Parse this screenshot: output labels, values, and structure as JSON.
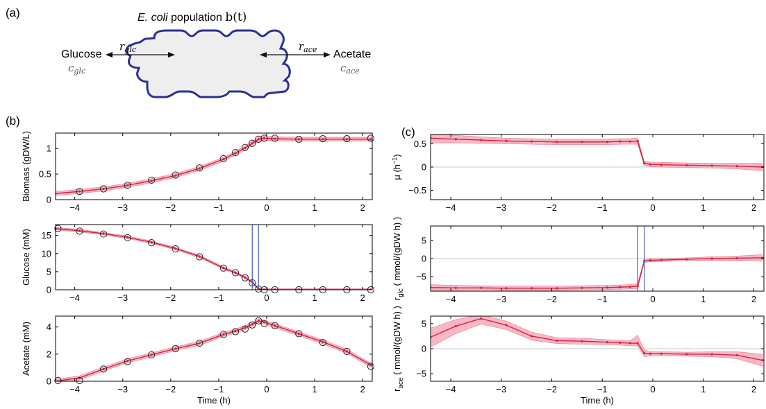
{
  "panel_labels": {
    "a": "(a)",
    "b": "(b)",
    "c": "(c)"
  },
  "diagram": {
    "title_italic": "E. coli",
    "title_rest": " population ",
    "title_math": "b(t)",
    "left_label": "Glucose",
    "left_sub": "c",
    "left_sub_idx": "glc",
    "right_label": "Acetate",
    "right_sub": "c",
    "right_sub_idx": "ace",
    "r_left": "r",
    "r_left_idx": "glc",
    "r_right": "r",
    "r_right_idx": "ace",
    "colors": {
      "outline": "#2b2f96",
      "fill": "#eeeeee"
    }
  },
  "colors": {
    "line": "#d4213d",
    "band": "#f7b7c4",
    "marker": "#222222",
    "vline": "#4a5ab8",
    "zero": "#c8c8c8"
  },
  "chart_data": [
    {
      "id": "biomass",
      "type": "line",
      "ylabel": "Biomass (gDW/L)",
      "xlabel": "",
      "xlim": [
        -4.4,
        2.2
      ],
      "ylim": [
        0,
        1.3
      ],
      "xticks": [
        -4,
        -3,
        -2,
        -1,
        0,
        1,
        2
      ],
      "yticks": [
        0,
        0.5,
        1
      ],
      "yticklabels": [
        "0",
        "0.5",
        "1"
      ],
      "x": [
        -4.4,
        -3.9,
        -3.4,
        -2.9,
        -2.4,
        -1.9,
        -1.4,
        -0.9,
        -0.65,
        -0.45,
        -0.3,
        -0.17,
        -0.05,
        0.17,
        0.67,
        1.17,
        1.67,
        2.17
      ],
      "y": [
        0.12,
        0.16,
        0.21,
        0.28,
        0.37,
        0.47,
        0.61,
        0.79,
        0.91,
        1.01,
        1.1,
        1.18,
        1.2,
        1.19,
        1.18,
        1.18,
        1.18,
        1.18
      ],
      "band": 0.04,
      "markers_x": [
        -3.9,
        -3.4,
        -2.9,
        -2.4,
        -1.9,
        -1.4,
        -0.9,
        -0.65,
        -0.45,
        -0.3,
        -0.17,
        -0.05,
        0.17,
        0.67,
        1.17,
        1.67,
        2.17
      ],
      "markers_y": [
        0.16,
        0.21,
        0.28,
        0.38,
        0.48,
        0.62,
        0.8,
        0.92,
        1.02,
        1.1,
        1.18,
        1.2,
        1.2,
        1.18,
        1.19,
        1.19,
        1.2
      ]
    },
    {
      "id": "glucose",
      "type": "line",
      "ylabel": "Glucose (mM)",
      "xlabel": "",
      "xlim": [
        -4.4,
        2.2
      ],
      "ylim": [
        0,
        18
      ],
      "xticks": [
        -4,
        -3,
        -2,
        -1,
        0,
        1,
        2
      ],
      "yticks": [
        0,
        5,
        10,
        15
      ],
      "yticklabels": [
        "0",
        "5",
        "10",
        "15"
      ],
      "x": [
        -4.4,
        -3.9,
        -3.4,
        -2.9,
        -2.4,
        -1.9,
        -1.4,
        -0.9,
        -0.65,
        -0.45,
        -0.3,
        -0.17,
        -0.05,
        0.17,
        0.67,
        1.17,
        1.67,
        2.17
      ],
      "y": [
        16.9,
        16.3,
        15.5,
        14.5,
        13.1,
        11.4,
        9.2,
        6.0,
        4.7,
        3.4,
        2.1,
        0.2,
        0.0,
        0.0,
        0.0,
        0.0,
        0.0,
        0.0
      ],
      "band": 0.35,
      "markers_x": [
        -4.35,
        -3.9,
        -3.4,
        -2.9,
        -2.4,
        -1.9,
        -1.4,
        -0.9,
        -0.65,
        -0.45,
        -0.3,
        -0.17,
        -0.05,
        0.17,
        0.67,
        1.17,
        1.67,
        2.17
      ],
      "markers_y": [
        16.9,
        16.2,
        15.4,
        14.4,
        13.0,
        11.3,
        9.1,
        6.0,
        4.7,
        3.3,
        1.9,
        0.2,
        0.0,
        0.0,
        0.0,
        0.0,
        0.0,
        0.0
      ],
      "vlines": [
        -0.3,
        -0.17
      ]
    },
    {
      "id": "acetate",
      "type": "line",
      "ylabel": "Acetate (mM)",
      "xlabel": "Time (h)",
      "xlim": [
        -4.4,
        2.2
      ],
      "ylim": [
        0,
        4.8
      ],
      "xticks": [
        -4,
        -3,
        -2,
        -1,
        0,
        1,
        2
      ],
      "yticks": [
        0,
        2,
        4
      ],
      "yticklabels": [
        "0",
        "2",
        "4"
      ],
      "x": [
        -4.4,
        -3.9,
        -3.4,
        -2.9,
        -2.4,
        -1.9,
        -1.4,
        -0.9,
        -0.65,
        -0.45,
        -0.3,
        -0.17,
        -0.05,
        0.17,
        0.67,
        1.17,
        1.67,
        2.17
      ],
      "y": [
        0.0,
        0.25,
        0.9,
        1.5,
        1.95,
        2.4,
        2.8,
        3.45,
        3.7,
        3.95,
        4.2,
        4.45,
        4.35,
        4.1,
        3.5,
        2.9,
        2.2,
        1.2
      ],
      "band": 0.15,
      "markers_x": [
        -4.35,
        -3.9,
        -3.4,
        -2.9,
        -2.4,
        -1.9,
        -1.4,
        -0.9,
        -0.65,
        -0.45,
        -0.3,
        -0.17,
        -0.05,
        0.17,
        0.67,
        1.17,
        1.67,
        2.17
      ],
      "markers_y": [
        0.05,
        0.05,
        0.9,
        1.45,
        1.95,
        2.4,
        2.8,
        3.45,
        3.65,
        3.85,
        4.15,
        4.45,
        4.25,
        4.1,
        3.5,
        2.85,
        2.2,
        1.1
      ]
    },
    {
      "id": "mu",
      "type": "line",
      "ylabel": "μ (h",
      "ylabel_sup": "−1",
      "ylabel_end": ")",
      "xlabel": "",
      "xlim": [
        -4.4,
        2.2
      ],
      "ylim": [
        -0.7,
        0.7
      ],
      "xticks": [
        -4,
        -3,
        -2,
        -1,
        0,
        1,
        2
      ],
      "yticks": [
        -0.5,
        0,
        0.5
      ],
      "yticklabels": [
        "−0.5",
        "0",
        "0.5"
      ],
      "zero_line": true,
      "x": [
        -4.4,
        -3.9,
        -3.4,
        -2.9,
        -2.4,
        -1.9,
        -1.4,
        -0.9,
        -0.65,
        -0.45,
        -0.3,
        -0.17,
        -0.05,
        0.17,
        0.67,
        1.17,
        1.67,
        2.17
      ],
      "y": [
        0.62,
        0.6,
        0.58,
        0.56,
        0.55,
        0.54,
        0.54,
        0.54,
        0.55,
        0.55,
        0.56,
        0.08,
        0.06,
        0.05,
        0.04,
        0.03,
        0.02,
        0.0
      ],
      "band_lo": [
        0.1,
        0.08,
        0.07,
        0.06,
        0.06,
        0.06,
        0.06,
        0.06,
        0.06,
        0.06,
        0.07,
        0.05,
        0.05,
        0.05,
        0.05,
        0.05,
        0.06,
        0.08
      ],
      "band_hi": [
        0.1,
        0.08,
        0.07,
        0.06,
        0.06,
        0.06,
        0.06,
        0.06,
        0.06,
        0.06,
        0.07,
        0.05,
        0.05,
        0.05,
        0.05,
        0.05,
        0.06,
        0.08
      ]
    },
    {
      "id": "rglc",
      "type": "line",
      "ylabel": "r",
      "ylabel_sub": "glc",
      "ylabel_end": " ( mmol/(gDW h) )",
      "xlabel": "",
      "xlim": [
        -4.4,
        2.2
      ],
      "ylim": [
        -9,
        9
      ],
      "xticks": [
        -4,
        -3,
        -2,
        -1,
        0,
        1,
        2
      ],
      "yticks": [
        -5,
        0,
        5
      ],
      "yticklabels": [
        "−5",
        "0",
        "5"
      ],
      "zero_line": true,
      "x": [
        -4.4,
        -3.9,
        -3.4,
        -2.9,
        -2.4,
        -1.9,
        -1.4,
        -0.9,
        -0.65,
        -0.45,
        -0.3,
        -0.17,
        -0.05,
        0.17,
        0.67,
        1.17,
        1.67,
        2.17
      ],
      "y": [
        -8.0,
        -8.1,
        -8.1,
        -8.2,
        -8.2,
        -8.2,
        -8.1,
        -8.0,
        -7.9,
        -7.8,
        -7.6,
        -0.7,
        -0.5,
        -0.4,
        -0.2,
        0.0,
        0.1,
        0.2
      ],
      "band_lo": [
        0.8,
        0.7,
        0.6,
        0.6,
        0.6,
        0.6,
        0.6,
        0.6,
        0.6,
        0.6,
        0.7,
        0.4,
        0.4,
        0.4,
        0.4,
        0.5,
        0.6,
        0.9
      ],
      "band_hi": [
        0.8,
        0.7,
        0.6,
        0.6,
        0.6,
        0.6,
        0.6,
        0.6,
        0.6,
        0.6,
        0.7,
        0.4,
        0.4,
        0.4,
        0.4,
        0.5,
        0.6,
        0.9
      ],
      "vlines": [
        -0.3,
        -0.17
      ]
    },
    {
      "id": "race",
      "type": "line",
      "ylabel": "r",
      "ylabel_sub": "ace",
      "ylabel_end": " ( mmol/(gDW h) )",
      "xlabel": "Time (h)",
      "xlim": [
        -4.4,
        2.2
      ],
      "ylim": [
        -6.5,
        6.5
      ],
      "xticks": [
        -4,
        -3,
        -2,
        -1,
        0,
        1,
        2
      ],
      "yticks": [
        -5,
        0,
        5
      ],
      "yticklabels": [
        "−5",
        "0",
        "5"
      ],
      "zero_line": true,
      "x": [
        -4.4,
        -3.9,
        -3.4,
        -2.9,
        -2.4,
        -1.9,
        -1.4,
        -0.9,
        -0.65,
        -0.45,
        -0.3,
        -0.17,
        -0.05,
        0.17,
        0.67,
        1.17,
        1.67,
        2.17
      ],
      "y": [
        2.3,
        4.5,
        6.0,
        4.7,
        2.5,
        1.6,
        1.5,
        1.3,
        1.2,
        1.1,
        1.1,
        -0.9,
        -1.0,
        -1.0,
        -1.1,
        -1.1,
        -1.3,
        -2.3
      ],
      "band_lo": [
        2.0,
        1.5,
        1.1,
        0.9,
        0.8,
        0.6,
        0.6,
        0.5,
        0.5,
        0.5,
        0.6,
        0.7,
        0.4,
        0.4,
        0.4,
        0.5,
        0.7,
        1.2
      ],
      "band_hi": [
        1.8,
        1.3,
        0.8,
        0.8,
        0.8,
        0.6,
        0.6,
        0.5,
        0.5,
        0.5,
        1.6,
        0.7,
        0.4,
        0.4,
        0.4,
        0.5,
        0.7,
        1.2
      ]
    }
  ]
}
